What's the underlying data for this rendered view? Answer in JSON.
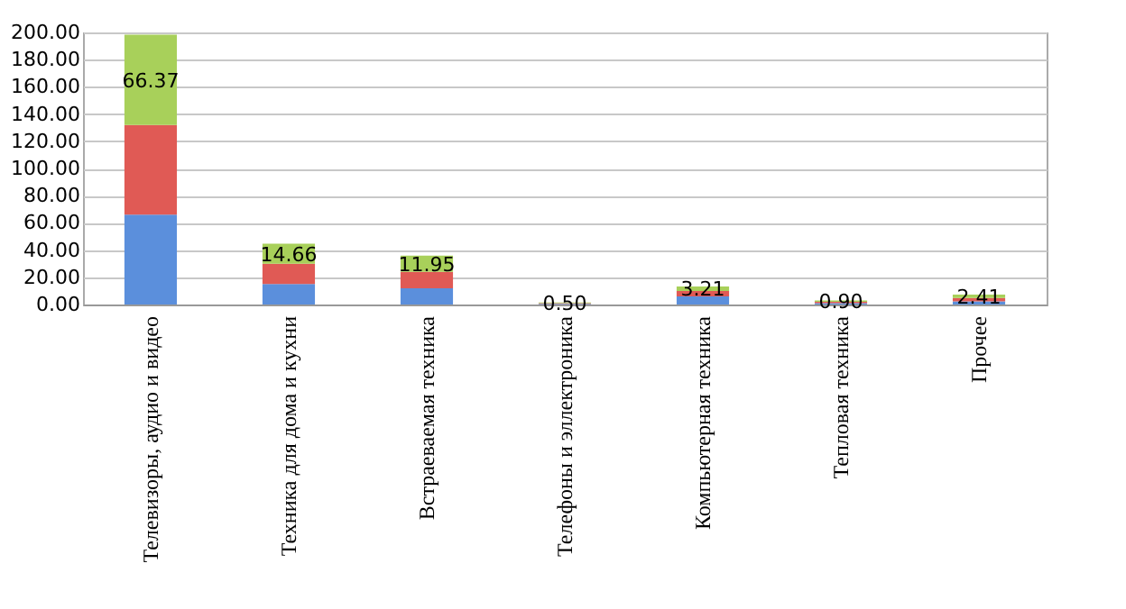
{
  "chart_data": {
    "type": "bar",
    "stacked": true,
    "categories": [
      "Телевизоры, аудио и видео",
      "Техника для дома и кухни",
      "Встраеваемая техника",
      "Телефоны и эллектроника",
      "Компьютерная техника",
      "Тепловая техника",
      "Прочее"
    ],
    "series": [
      {
        "color": "#5b8fdc",
        "values": [
          66,
          15,
          12,
          0.5,
          6,
          1,
          2.4
        ]
      },
      {
        "color": "#e05a55",
        "values": [
          66,
          15,
          12,
          0.5,
          4,
          1,
          2.4
        ]
      },
      {
        "color": "#a8d05a",
        "values": [
          66.37,
          14.66,
          11.95,
          0.5,
          3.21,
          0.9,
          2.41
        ],
        "value_labels": [
          "66.37",
          "14.66",
          "11.95",
          "0.50",
          "3.21",
          "0.90",
          "2.41"
        ]
      }
    ],
    "ylim": [
      0,
      200
    ],
    "yticks": [
      {
        "value": 0,
        "label": "0.00"
      },
      {
        "value": 20,
        "label": "20.00"
      },
      {
        "value": 40,
        "label": "40.00"
      },
      {
        "value": 60,
        "label": "60.00"
      },
      {
        "value": 80,
        "label": "80.00"
      },
      {
        "value": 100,
        "label": "100.00"
      },
      {
        "value": 120,
        "label": "120.00"
      },
      {
        "value": 140,
        "label": "140.00"
      },
      {
        "value": 160,
        "label": "160.00"
      },
      {
        "value": 180,
        "label": "180.00"
      },
      {
        "value": 200,
        "label": "200.00"
      }
    ],
    "grid": "y"
  }
}
